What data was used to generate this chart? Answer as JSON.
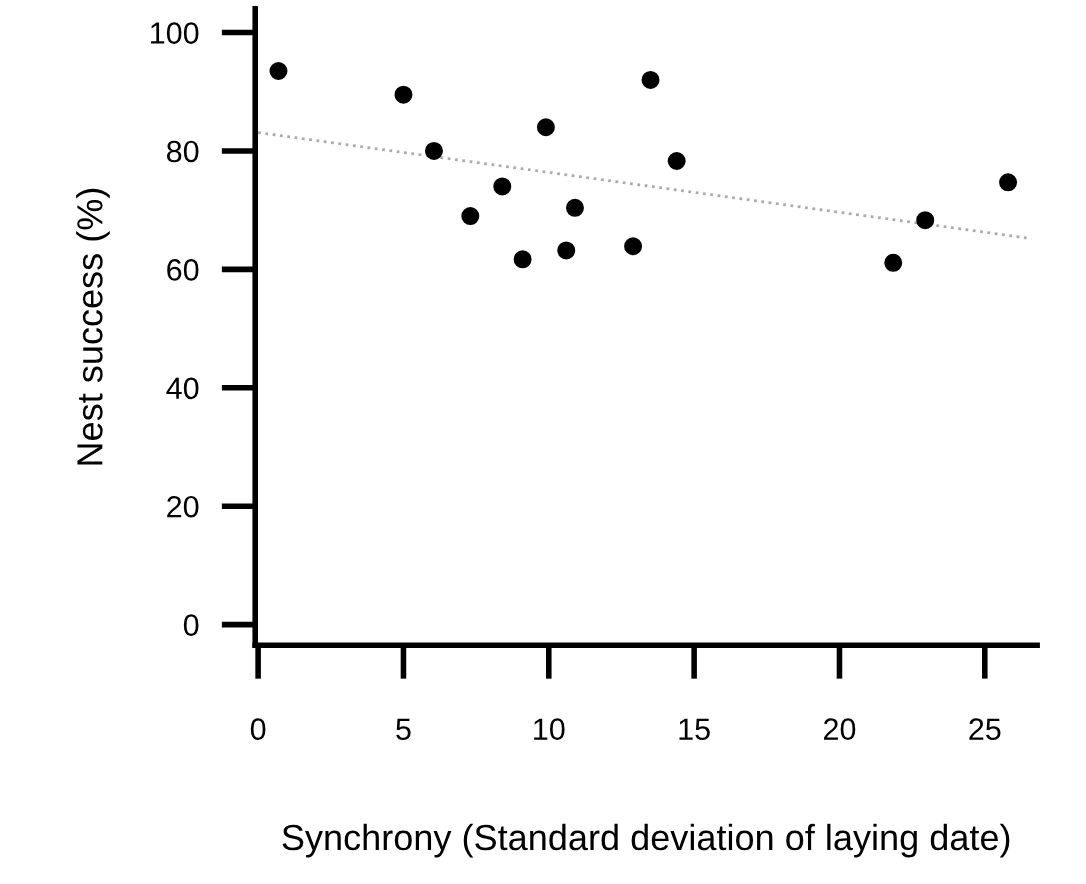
{
  "chart_data": {
    "type": "scatter",
    "xlabel": "Synchrony (Standard deviation of laying date)",
    "ylabel": "Nest success (%)",
    "series": [
      {
        "color": "#000000",
        "marker": "circle",
        "x": [
          0.7,
          5.0,
          6.05,
          7.3,
          8.4,
          9.1,
          9.9,
          10.6,
          10.9,
          12.9,
          13.5,
          14.4,
          21.85,
          22.95,
          25.8
        ],
        "values": [
          93.5,
          89.5,
          80,
          69,
          74,
          61.7,
          84,
          63.2,
          70.4,
          63.9,
          92,
          78.3,
          61.1,
          68.3,
          74.7
        ]
      },
      {
        "type": "line",
        "color": "#aaaaaa",
        "marker": "none",
        "line_style": "dotted",
        "x": [
          0,
          26.6
        ],
        "values": [
          83.1,
          65.2
        ]
      }
    ],
    "xlim": [
      -0.1,
      26.8
    ],
    "ylim": [
      -3.5,
      104
    ],
    "xticks": [
      0,
      5,
      10,
      15,
      20,
      25
    ],
    "yticks": [
      0,
      20,
      40,
      60,
      80,
      100
    ],
    "grid": false,
    "legend": false
  }
}
